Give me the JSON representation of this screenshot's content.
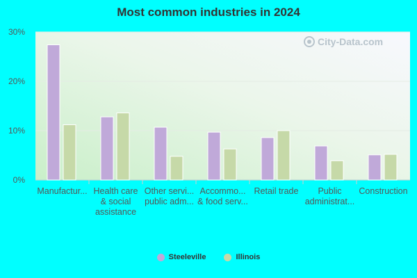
{
  "chart_data": {
    "type": "bar",
    "title": "Most common industries in 2024",
    "categories": [
      [
        "Manufactur..."
      ],
      [
        "Health care",
        "& social",
        "assistance"
      ],
      [
        "Other servi...",
        "public adm..."
      ],
      [
        "Accommo...",
        "& food serv..."
      ],
      [
        "Retail trade"
      ],
      [
        "Public",
        "administrat..."
      ],
      [
        "Construction"
      ]
    ],
    "series": [
      {
        "name": "Steeleville",
        "color": "#c0a9d9",
        "values": [
          27.4,
          12.8,
          10.7,
          9.7,
          8.6,
          6.9,
          5.1
        ]
      },
      {
        "name": "Illinois",
        "color": "#c6d9a8",
        "values": [
          11.2,
          13.6,
          4.8,
          6.3,
          10.0,
          3.9,
          5.2
        ]
      }
    ],
    "ylim": [
      0,
      30
    ],
    "yticks": [
      0,
      10,
      20,
      30
    ],
    "ytick_labels": [
      "0%",
      "10%",
      "20%",
      "30%"
    ],
    "grid": true,
    "legend_position": "bottom-center"
  },
  "watermark": {
    "text": "City-Data.com",
    "icon": "city-data-logo-icon"
  }
}
